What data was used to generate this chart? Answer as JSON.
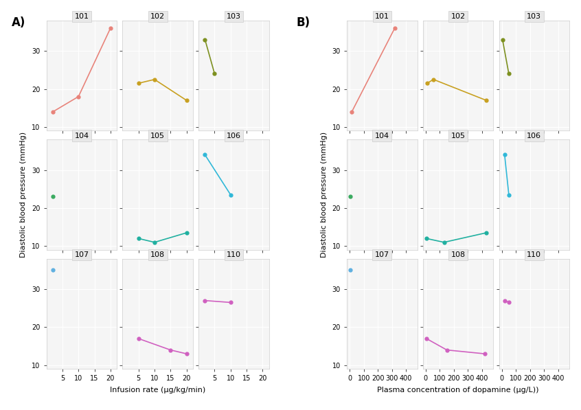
{
  "subjects": [
    "101",
    "102",
    "103",
    "104",
    "105",
    "106",
    "107",
    "108",
    "110"
  ],
  "colors": {
    "101": "#E8837A",
    "102": "#C8A020",
    "103": "#7D9020",
    "104": "#3AAA60",
    "105": "#20B0A0",
    "106": "#30B8D8",
    "107": "#60B0E0",
    "108": "#D060C0",
    "110": "#D060C0"
  },
  "panel_A": {
    "101": {
      "x": [
        2,
        10,
        20
      ],
      "y": [
        14,
        18,
        36
      ]
    },
    "102": {
      "x": [
        5,
        10,
        20
      ],
      "y": [
        21.5,
        22.5,
        17
      ]
    },
    "103": {
      "x": [
        2,
        5
      ],
      "y": [
        33,
        24
      ]
    },
    "104": {
      "x": [
        2
      ],
      "y": [
        23
      ]
    },
    "105": {
      "x": [
        5,
        10,
        20
      ],
      "y": [
        12,
        11,
        13.5
      ]
    },
    "106": {
      "x": [
        2,
        10
      ],
      "y": [
        34,
        23.5
      ]
    },
    "107": {
      "x": [
        2
      ],
      "y": [
        35
      ]
    },
    "108": {
      "x": [
        5,
        15,
        20
      ],
      "y": [
        17,
        14,
        13
      ]
    },
    "110": {
      "x": [
        2,
        10
      ],
      "y": [
        27,
        26.5
      ]
    }
  },
  "panel_B": {
    "101": {
      "x": [
        15,
        320
      ],
      "y": [
        14,
        36
      ]
    },
    "102": {
      "x": [
        10,
        55,
        430
      ],
      "y": [
        21.5,
        22.5,
        17
      ]
    },
    "103": {
      "x": [
        5,
        50
      ],
      "y": [
        33,
        24
      ]
    },
    "104": {
      "x": [
        2
      ],
      "y": [
        23
      ]
    },
    "105": {
      "x": [
        5,
        130,
        430
      ],
      "y": [
        12,
        11,
        13.5
      ]
    },
    "106": {
      "x": [
        20,
        50
      ],
      "y": [
        34,
        23.5
      ]
    },
    "107": {
      "x": [
        2
      ],
      "y": [
        35
      ]
    },
    "108": {
      "x": [
        5,
        150,
        420
      ],
      "y": [
        17,
        14,
        13
      ]
    },
    "110": {
      "x": [
        20,
        50
      ],
      "y": [
        27,
        26.5
      ]
    }
  },
  "ylim": [
    9,
    38
  ],
  "yticks": [
    10,
    20,
    30
  ],
  "panel_A_xlim": [
    0,
    22
  ],
  "panel_A_xticks": [
    5,
    10,
    15,
    20
  ],
  "panel_B_xlim": [
    -20,
    480
  ],
  "panel_B_xticks": [
    0,
    100,
    200,
    300,
    400
  ],
  "xlabel_A": "Infusion rate (μg/kg/min)",
  "xlabel_B": "Plasma concentration of dopamine (μg/L))",
  "ylabel": "Diastolic blood pressure (mmHg)",
  "panel_label_A": "A)",
  "panel_label_B": "B)",
  "facet_bg": "#E8E8E8",
  "plot_bg": "#F5F5F5",
  "grid_color": "white"
}
